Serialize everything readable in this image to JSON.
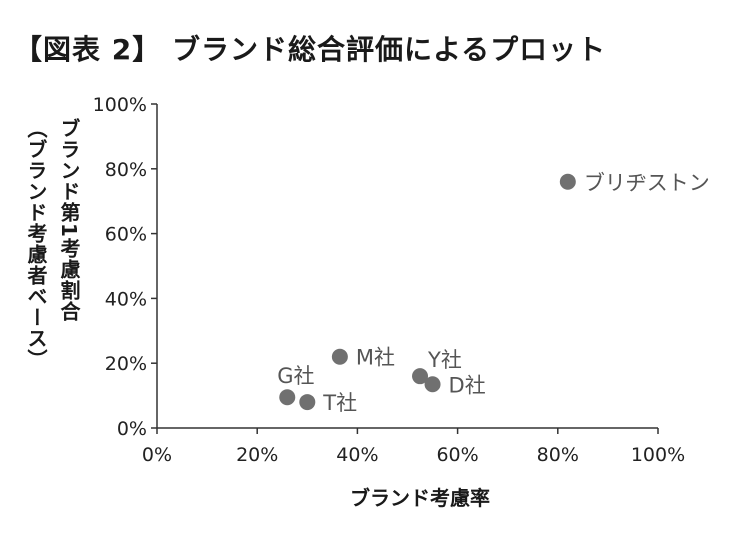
{
  "title": "【図表 2】 ブランド総合評価によるプロット",
  "chart_data": {
    "type": "scatter",
    "xlabel": "ブランド考慮率",
    "ylabel_lines": [
      "ブランド第1考慮割合",
      "（ブランド考慮者ベース）"
    ],
    "xlim": [
      0,
      100
    ],
    "ylim": [
      0,
      100
    ],
    "x_ticks": [
      0,
      20,
      40,
      60,
      80,
      100
    ],
    "y_ticks": [
      0,
      20,
      40,
      60,
      80,
      100
    ],
    "tick_suffix": "%",
    "grid": false,
    "marker_color": "#707070",
    "label_color": "#555555",
    "axis_color": "#333333",
    "points": [
      {
        "label": "ブリヂストン",
        "x": 82,
        "y": 76,
        "label_pos": "right"
      },
      {
        "label": "M社",
        "x": 36.5,
        "y": 22,
        "label_pos": "right"
      },
      {
        "label": "Y社",
        "x": 52.5,
        "y": 16,
        "label_pos": "above-right"
      },
      {
        "label": "D社",
        "x": 55,
        "y": 13.5,
        "label_pos": "right"
      },
      {
        "label": "G社",
        "x": 26,
        "y": 9.5,
        "label_pos": "above"
      },
      {
        "label": "T社",
        "x": 30,
        "y": 8,
        "label_pos": "right"
      }
    ]
  }
}
